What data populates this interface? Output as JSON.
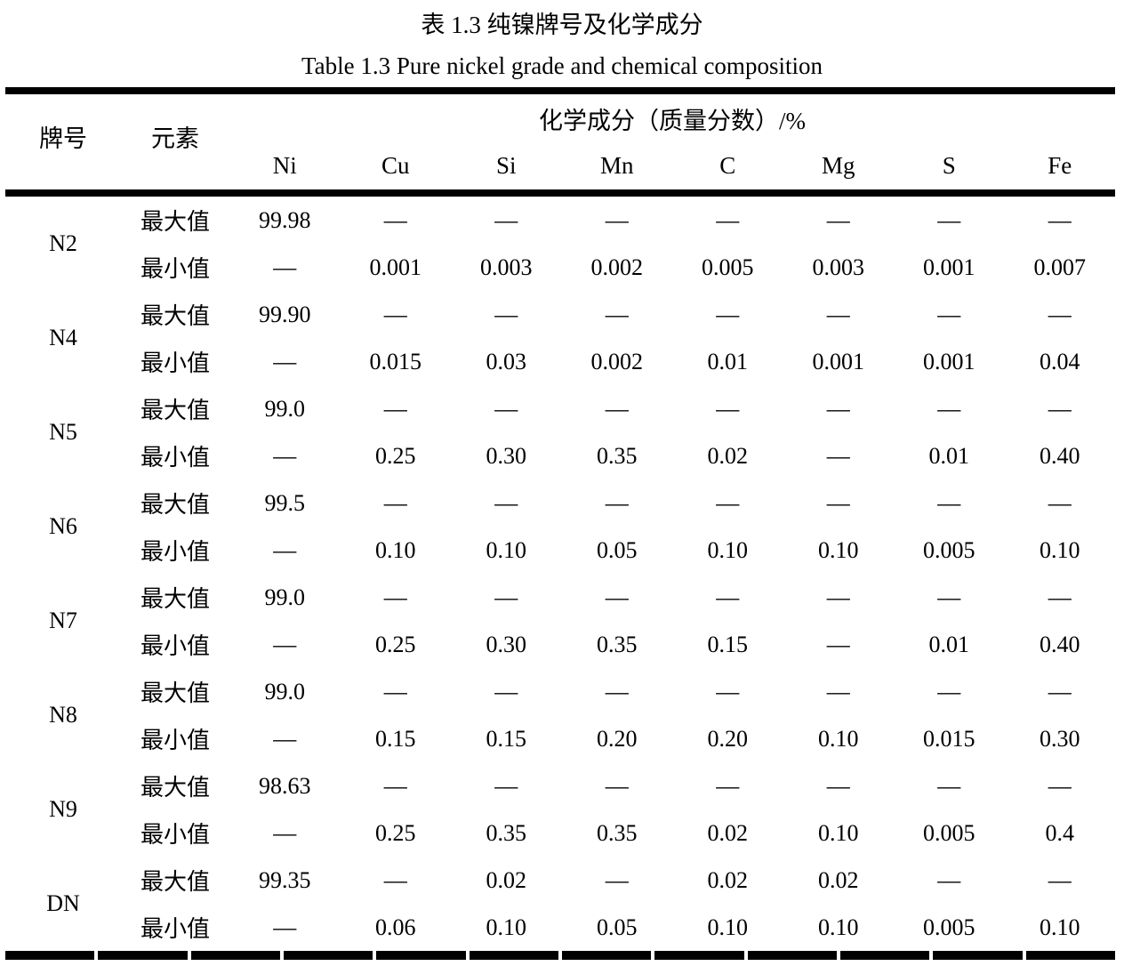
{
  "titles": {
    "zh": "表 1.3 纯镍牌号及化学成分",
    "en": "Table 1.3 Pure nickel grade and chemical composition"
  },
  "colors": {
    "background": "#ffffff",
    "text": "#000000",
    "rule": "#000000"
  },
  "table": {
    "headers": {
      "grade": "牌号",
      "element": "元素",
      "group": "化学成分（质量分数）/%"
    },
    "element_headers": [
      "Ni",
      "Cu",
      "Si",
      "Mn",
      "C",
      "Mg",
      "S",
      "Fe"
    ],
    "labels": {
      "max": "最大值",
      "min": "最小值"
    },
    "grades": [
      {
        "grade": "N2",
        "max": [
          "99.98",
          "—",
          "—",
          "—",
          "—",
          "—",
          "—",
          "—"
        ],
        "min": [
          "—",
          "0.001",
          "0.003",
          "0.002",
          "0.005",
          "0.003",
          "0.001",
          "0.007"
        ]
      },
      {
        "grade": "N4",
        "max": [
          "99.90",
          "—",
          "—",
          "—",
          "—",
          "—",
          "—",
          "—"
        ],
        "min": [
          "—",
          "0.015",
          "0.03",
          "0.002",
          "0.01",
          "0.001",
          "0.001",
          "0.04"
        ]
      },
      {
        "grade": "N5",
        "max": [
          "99.0",
          "—",
          "—",
          "—",
          "—",
          "—",
          "—",
          "—"
        ],
        "min": [
          "—",
          "0.25",
          "0.30",
          "0.35",
          "0.02",
          "—",
          "0.01",
          "0.40"
        ]
      },
      {
        "grade": "N6",
        "max": [
          "99.5",
          "—",
          "—",
          "—",
          "—",
          "—",
          "—",
          "—"
        ],
        "min": [
          "—",
          "0.10",
          "0.10",
          "0.05",
          "0.10",
          "0.10",
          "0.005",
          "0.10"
        ]
      },
      {
        "grade": "N7",
        "max": [
          "99.0",
          "—",
          "—",
          "—",
          "—",
          "—",
          "—",
          "—"
        ],
        "min": [
          "—",
          "0.25",
          "0.30",
          "0.35",
          "0.15",
          "—",
          "0.01",
          "0.40"
        ]
      },
      {
        "grade": "N8",
        "max": [
          "99.0",
          "—",
          "—",
          "—",
          "—",
          "—",
          "—",
          "—"
        ],
        "min": [
          "—",
          "0.15",
          "0.15",
          "0.20",
          "0.20",
          "0.10",
          "0.015",
          "0.30"
        ]
      },
      {
        "grade": "N9",
        "max": [
          "98.63",
          "—",
          "—",
          "—",
          "—",
          "—",
          "—",
          "—"
        ],
        "min": [
          "—",
          "0.25",
          "0.35",
          "0.35",
          "0.02",
          "0.10",
          "0.005",
          "0.4"
        ]
      },
      {
        "grade": "DN",
        "max": [
          "99.35",
          "—",
          "0.02",
          "—",
          "0.02",
          "0.02",
          "—",
          "—"
        ],
        "min": [
          "—",
          "0.06",
          "0.10",
          "0.05",
          "0.10",
          "0.10",
          "0.005",
          "0.10"
        ]
      }
    ]
  }
}
